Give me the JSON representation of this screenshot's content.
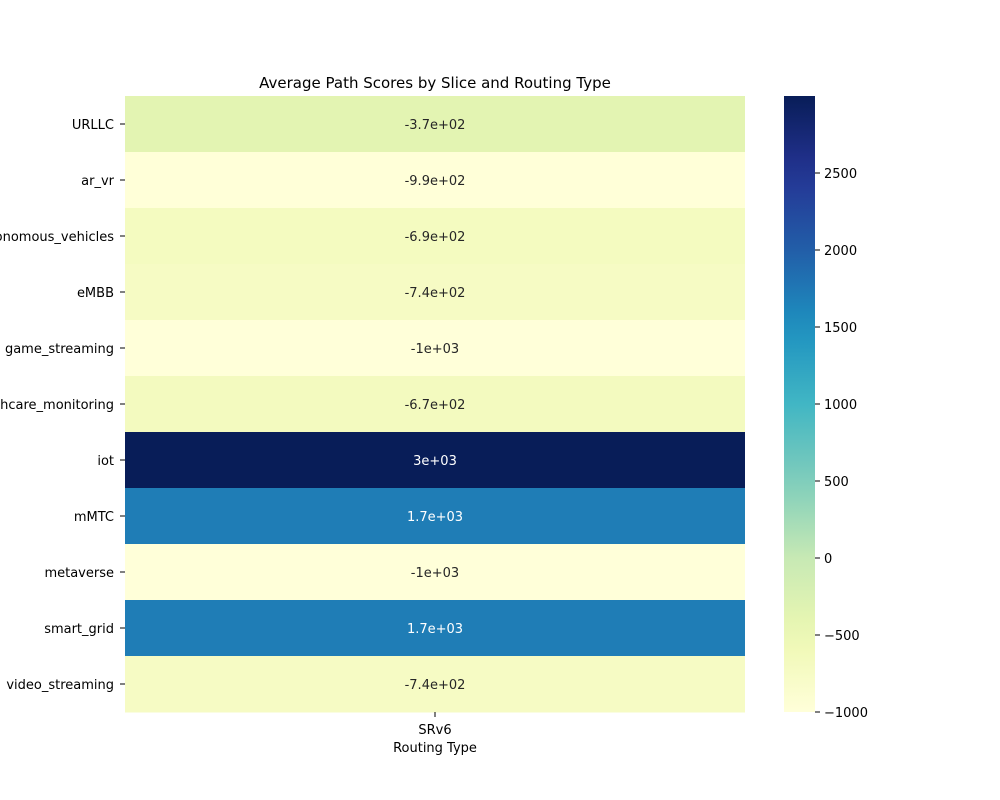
{
  "chart_data": {
    "type": "heatmap",
    "title": "Average Path Scores by Slice and Routing Type",
    "xlabel": "Routing Type",
    "ylabel": "",
    "columns": [
      "SRv6"
    ],
    "rows": [
      "URLLC",
      "ar_vr",
      "autonomous_vehicles",
      "eMBB",
      "game_streaming",
      "healthcare_monitoring",
      "iot",
      "mMTC",
      "metaverse",
      "smart_grid",
      "video_streaming"
    ],
    "values": [
      [
        -370
      ],
      [
        -990
      ],
      [
        -690
      ],
      [
        -740
      ],
      [
        -1000
      ],
      [
        -670
      ],
      [
        3000
      ],
      [
        1700
      ],
      [
        -1000
      ],
      [
        1700
      ],
      [
        -740
      ]
    ],
    "annotations": [
      [
        "-3.7e+02"
      ],
      [
        "-9.9e+02"
      ],
      [
        "-6.9e+02"
      ],
      [
        "-7.4e+02"
      ],
      [
        "-1e+03"
      ],
      [
        "-6.7e+02"
      ],
      [
        "3e+03"
      ],
      [
        "1.7e+03"
      ],
      [
        "-1e+03"
      ],
      [
        "1.7e+03"
      ],
      [
        "-7.4e+02"
      ]
    ],
    "colorbar": {
      "colormap": "YlGnBu",
      "range": [
        -1000,
        3000
      ],
      "ticks": [
        -1000,
        -500,
        0,
        500,
        1000,
        1500,
        2000,
        2500
      ],
      "tick_labels": [
        "−1000",
        "−500",
        "0",
        "500",
        "1000",
        "1500",
        "2000",
        "2500"
      ]
    }
  }
}
